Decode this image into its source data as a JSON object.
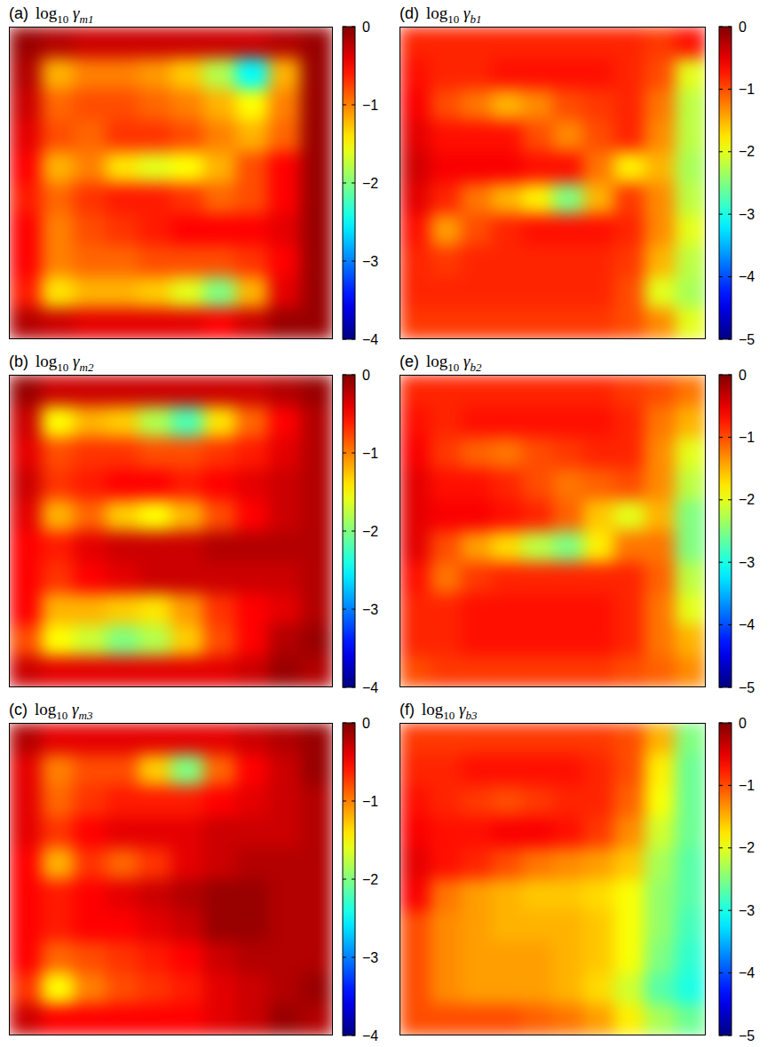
{
  "chart_data": [
    {
      "type": "heatmap",
      "panel": "(a)",
      "title": "log10 γm1",
      "clim": [
        -4,
        0
      ],
      "cticks": [
        0,
        {
          "value": -1,
          "label": "−1"
        },
        {
          "value": -2,
          "label": "−2"
        },
        {
          "value": -3,
          "label": "−3"
        },
        {
          "value": -4,
          "label": "−4"
        }
      ],
      "cells": [
        [
          -0.1,
          -0.2,
          -0.3,
          -0.3,
          -0.3,
          -0.3,
          -0.3,
          -0.3,
          -0.2,
          -0.1
        ],
        [
          -0.2,
          -1.2,
          -1.0,
          -1.0,
          -1.1,
          -1.3,
          -1.8,
          -2.5,
          -1.2,
          -0.1
        ],
        [
          -0.3,
          -0.9,
          -0.8,
          -0.8,
          -0.9,
          -1.0,
          -1.2,
          -1.5,
          -1.0,
          -0.1
        ],
        [
          -0.4,
          -0.8,
          -0.9,
          -0.7,
          -0.7,
          -0.8,
          -1.0,
          -1.2,
          -0.9,
          -0.1
        ],
        [
          -0.5,
          -1.2,
          -1.0,
          -1.4,
          -1.6,
          -1.5,
          -1.2,
          -0.8,
          -0.5,
          -0.1
        ],
        [
          -0.6,
          -0.9,
          -0.7,
          -0.6,
          -0.6,
          -0.7,
          -0.9,
          -0.8,
          -0.5,
          -0.1
        ],
        [
          -0.5,
          -1.0,
          -0.8,
          -0.7,
          -0.6,
          -0.5,
          -0.5,
          -0.5,
          -0.4,
          -0.1
        ],
        [
          -0.5,
          -1.0,
          -0.9,
          -0.9,
          -0.8,
          -0.8,
          -0.8,
          -0.7,
          -0.5,
          -0.1
        ],
        [
          -0.6,
          -1.4,
          -1.2,
          -1.2,
          -1.3,
          -1.6,
          -2.0,
          -1.2,
          -0.4,
          -0.1
        ],
        [
          -0.2,
          -0.3,
          -0.4,
          -0.4,
          -0.4,
          -0.4,
          -0.5,
          -0.3,
          -0.1,
          -0.1
        ]
      ]
    },
    {
      "type": "heatmap",
      "panel": "(b)",
      "title": "log10 γm2",
      "clim": [
        -4,
        0
      ],
      "cticks": [
        0,
        {
          "value": -1,
          "label": "−1"
        },
        {
          "value": -2,
          "label": "−2"
        },
        {
          "value": -3,
          "label": "−3"
        },
        {
          "value": -4,
          "label": "−4"
        }
      ],
      "cells": [
        [
          -0.1,
          -0.3,
          -0.3,
          -0.3,
          -0.3,
          -0.3,
          -0.3,
          -0.3,
          -0.2,
          -0.1
        ],
        [
          -0.3,
          -1.5,
          -1.2,
          -1.3,
          -1.8,
          -2.2,
          -1.4,
          -0.9,
          -0.5,
          -0.2
        ],
        [
          -0.4,
          -0.8,
          -0.7,
          -0.7,
          -0.8,
          -0.8,
          -0.7,
          -0.6,
          -0.4,
          -0.2
        ],
        [
          -0.3,
          -0.7,
          -0.6,
          -0.5,
          -0.5,
          -0.6,
          -0.5,
          -0.4,
          -0.3,
          -0.2
        ],
        [
          -0.4,
          -1.2,
          -0.9,
          -1.3,
          -1.5,
          -1.2,
          -0.8,
          -0.5,
          -0.3,
          -0.2
        ],
        [
          -0.5,
          -0.6,
          -0.4,
          -0.3,
          -0.3,
          -0.3,
          -0.2,
          -0.2,
          -0.2,
          -0.2
        ],
        [
          -0.5,
          -0.7,
          -0.5,
          -0.4,
          -0.3,
          -0.3,
          -0.3,
          -0.3,
          -0.3,
          -0.2
        ],
        [
          -0.5,
          -1.2,
          -1.2,
          -1.3,
          -1.4,
          -1.1,
          -0.7,
          -0.5,
          -0.4,
          -0.2
        ],
        [
          -0.8,
          -1.5,
          -1.7,
          -2.0,
          -1.8,
          -1.3,
          -0.8,
          -0.5,
          -0.2,
          -0.1
        ],
        [
          -0.3,
          -0.4,
          -0.4,
          -0.4,
          -0.4,
          -0.4,
          -0.4,
          -0.3,
          -0.1,
          -0.2
        ]
      ]
    },
    {
      "type": "heatmap",
      "panel": "(c)",
      "title": "log10 γm3",
      "clim": [
        -4,
        0
      ],
      "cticks": [
        0,
        {
          "value": -1,
          "label": "−1"
        },
        {
          "value": -2,
          "label": "−2"
        },
        {
          "value": -3,
          "label": "−3"
        },
        {
          "value": -4,
          "label": "−4"
        }
      ],
      "cells": [
        [
          -0.2,
          -0.4,
          -0.4,
          -0.4,
          -0.4,
          -0.4,
          -0.4,
          -0.3,
          -0.2,
          -0.1
        ],
        [
          -0.4,
          -1.0,
          -0.8,
          -0.8,
          -1.3,
          -2.0,
          -0.9,
          -0.5,
          -0.3,
          -0.1
        ],
        [
          -0.4,
          -0.9,
          -0.7,
          -0.6,
          -0.6,
          -0.6,
          -0.5,
          -0.4,
          -0.3,
          -0.2
        ],
        [
          -0.4,
          -0.7,
          -0.5,
          -0.4,
          -0.4,
          -0.4,
          -0.3,
          -0.3,
          -0.3,
          -0.2
        ],
        [
          -0.5,
          -1.2,
          -0.7,
          -0.9,
          -0.7,
          -0.4,
          -0.3,
          -0.2,
          -0.2,
          -0.2
        ],
        [
          -0.5,
          -0.6,
          -0.5,
          -0.4,
          -0.3,
          -0.2,
          -0.1,
          -0.1,
          -0.2,
          -0.2
        ],
        [
          -0.5,
          -0.6,
          -0.5,
          -0.5,
          -0.4,
          -0.3,
          -0.1,
          -0.1,
          -0.2,
          -0.2
        ],
        [
          -0.5,
          -0.9,
          -0.8,
          -0.7,
          -0.6,
          -0.5,
          -0.3,
          -0.2,
          -0.2,
          -0.2
        ],
        [
          -0.7,
          -1.5,
          -1.0,
          -0.8,
          -0.7,
          -0.6,
          -0.4,
          -0.3,
          -0.2,
          -0.1
        ],
        [
          -0.3,
          -0.5,
          -0.5,
          -0.5,
          -0.5,
          -0.5,
          -0.4,
          -0.3,
          -0.1,
          -0.2
        ]
      ]
    },
    {
      "type": "heatmap",
      "panel": "(d)",
      "title": "log10 γb1",
      "clim": [
        -5,
        0
      ],
      "cticks": [
        0,
        {
          "value": -1,
          "label": "−1"
        },
        {
          "value": -2,
          "label": "−2"
        },
        {
          "value": -3,
          "label": "−3"
        },
        {
          "value": -4,
          "label": "−4"
        },
        {
          "value": -5,
          "label": "−5"
        }
      ],
      "cells": [
        [
          -0.8,
          -0.8,
          -0.8,
          -0.8,
          -0.8,
          -0.8,
          -0.8,
          -0.8,
          -0.9,
          -0.7
        ],
        [
          -0.7,
          -0.8,
          -0.8,
          -0.7,
          -0.7,
          -0.7,
          -0.7,
          -0.8,
          -1.0,
          -2.0
        ],
        [
          -0.6,
          -1.0,
          -1.2,
          -1.5,
          -1.3,
          -1.0,
          -0.9,
          -0.8,
          -1.2,
          -2.2
        ],
        [
          -0.5,
          -0.7,
          -0.7,
          -0.7,
          -1.0,
          -1.3,
          -1.0,
          -0.8,
          -1.3,
          -2.2
        ],
        [
          -0.4,
          -0.6,
          -0.6,
          -0.6,
          -0.7,
          -0.7,
          -1.2,
          -1.8,
          -1.5,
          -2.3
        ],
        [
          -0.5,
          -0.8,
          -1.2,
          -1.5,
          -1.8,
          -2.5,
          -1.5,
          -0.9,
          -1.3,
          -2.2
        ],
        [
          -0.7,
          -1.4,
          -1.0,
          -0.8,
          -0.7,
          -0.7,
          -0.7,
          -0.8,
          -1.3,
          -2.0
        ],
        [
          -0.8,
          -0.9,
          -0.8,
          -0.8,
          -0.8,
          -0.8,
          -0.8,
          -0.9,
          -1.5,
          -2.2
        ],
        [
          -0.8,
          -0.8,
          -0.8,
          -0.8,
          -0.8,
          -0.8,
          -0.8,
          -1.0,
          -2.0,
          -2.3
        ],
        [
          -0.9,
          -0.9,
          -0.9,
          -0.9,
          -0.9,
          -0.9,
          -0.9,
          -1.0,
          -1.3,
          -2.0
        ]
      ]
    },
    {
      "type": "heatmap",
      "panel": "(e)",
      "title": "log10 γb2",
      "clim": [
        -5,
        0
      ],
      "cticks": [
        0,
        {
          "value": -1,
          "label": "−1"
        },
        {
          "value": -2,
          "label": "−2"
        },
        {
          "value": -3,
          "label": "−3"
        },
        {
          "value": -4,
          "label": "−4"
        },
        {
          "value": -5,
          "label": "−5"
        }
      ],
      "cells": [
        [
          -0.8,
          -0.8,
          -0.8,
          -0.8,
          -0.8,
          -0.8,
          -0.8,
          -0.9,
          -1.0,
          -1.2
        ],
        [
          -0.7,
          -0.8,
          -0.7,
          -0.7,
          -0.7,
          -0.7,
          -0.7,
          -0.8,
          -1.2,
          -1.5
        ],
        [
          -0.6,
          -0.9,
          -1.1,
          -1.2,
          -1.0,
          -0.9,
          -0.8,
          -0.8,
          -1.3,
          -2.0
        ],
        [
          -0.5,
          -0.7,
          -0.7,
          -0.8,
          -1.0,
          -1.2,
          -1.1,
          -1.0,
          -1.3,
          -2.2
        ],
        [
          -0.5,
          -0.6,
          -0.6,
          -0.7,
          -0.8,
          -1.1,
          -1.6,
          -2.0,
          -1.5,
          -2.5
        ],
        [
          -0.5,
          -1.0,
          -1.4,
          -1.7,
          -2.2,
          -2.5,
          -1.8,
          -1.2,
          -1.2,
          -2.5
        ],
        [
          -0.7,
          -1.2,
          -0.9,
          -0.8,
          -0.8,
          -0.8,
          -0.8,
          -0.8,
          -1.1,
          -2.2
        ],
        [
          -0.8,
          -0.8,
          -0.7,
          -0.7,
          -0.7,
          -0.7,
          -0.7,
          -0.8,
          -1.2,
          -2.0
        ],
        [
          -0.8,
          -0.8,
          -0.7,
          -0.7,
          -0.7,
          -0.7,
          -0.7,
          -0.8,
          -1.2,
          -1.5
        ],
        [
          -1.0,
          -0.9,
          -0.9,
          -0.9,
          -0.9,
          -0.9,
          -0.9,
          -1.0,
          -1.1,
          -1.3
        ]
      ]
    },
    {
      "type": "heatmap",
      "panel": "(f)",
      "title": "log10 γb3",
      "clim": [
        -5,
        0
      ],
      "cticks": [
        0,
        {
          "value": -1,
          "label": "−1"
        },
        {
          "value": -2,
          "label": "−2"
        },
        {
          "value": -3,
          "label": "−3"
        },
        {
          "value": -4,
          "label": "−4"
        },
        {
          "value": -5,
          "label": "−5"
        }
      ],
      "cells": [
        [
          -0.9,
          -0.9,
          -0.9,
          -0.9,
          -0.9,
          -0.9,
          -0.9,
          -1.0,
          -1.5,
          -2.5
        ],
        [
          -0.8,
          -0.8,
          -0.7,
          -0.7,
          -0.7,
          -0.7,
          -0.8,
          -1.0,
          -1.8,
          -2.6
        ],
        [
          -0.7,
          -0.8,
          -0.9,
          -1.0,
          -0.9,
          -0.8,
          -0.8,
          -1.1,
          -1.9,
          -2.6
        ],
        [
          -0.6,
          -0.7,
          -0.7,
          -0.6,
          -0.6,
          -0.7,
          -0.9,
          -1.3,
          -2.1,
          -2.6
        ],
        [
          -0.5,
          -0.7,
          -0.8,
          -1.0,
          -1.2,
          -1.3,
          -1.4,
          -1.6,
          -2.3,
          -2.7
        ],
        [
          -0.6,
          -1.2,
          -1.4,
          -1.5,
          -1.6,
          -1.6,
          -1.7,
          -1.9,
          -2.4,
          -2.7
        ],
        [
          -1.0,
          -1.3,
          -1.4,
          -1.5,
          -1.5,
          -1.5,
          -1.6,
          -1.9,
          -2.4,
          -2.8
        ],
        [
          -1.0,
          -1.3,
          -1.4,
          -1.4,
          -1.4,
          -1.5,
          -1.6,
          -1.9,
          -2.5,
          -2.9
        ],
        [
          -1.0,
          -1.3,
          -1.4,
          -1.4,
          -1.4,
          -1.5,
          -1.7,
          -2.1,
          -2.7,
          -3.0
        ],
        [
          -1.0,
          -1.0,
          -1.0,
          -1.0,
          -1.1,
          -1.2,
          -1.4,
          -1.8,
          -2.3,
          -2.6
        ]
      ]
    }
  ]
}
